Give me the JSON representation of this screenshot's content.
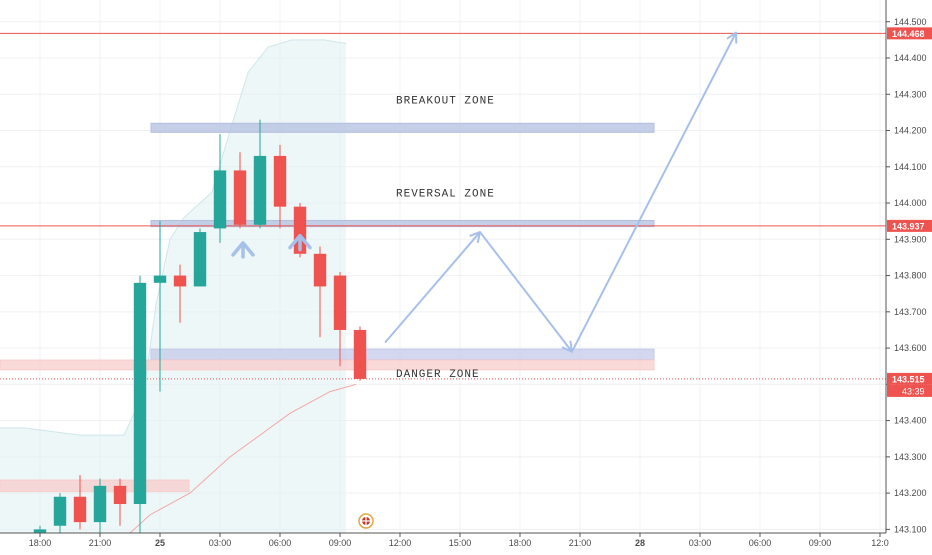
{
  "chart_data": {
    "type": "candlestick",
    "y_axis": {
      "min": 143.09,
      "max": 144.56,
      "ticks": [
        "143.100",
        "143.200",
        "143.300",
        "143.400",
        "143.500",
        "143.600",
        "143.700",
        "143.800",
        "143.900",
        "144.000",
        "144.100",
        "144.200",
        "144.300",
        "144.400",
        "144.500"
      ]
    },
    "x_axis": {
      "ticks": [
        {
          "label": "18:00",
          "x": -4
        },
        {
          "label": "21:00",
          "x": -1
        },
        {
          "label": "25",
          "x": 2
        },
        {
          "label": "03:00",
          "x": 5
        },
        {
          "label": "06:00",
          "x": 8
        },
        {
          "label": "09:00",
          "x": 11
        },
        {
          "label": "12:00",
          "x": 14
        },
        {
          "label": "15:00",
          "x": 17
        },
        {
          "label": "18:00",
          "x": 20
        },
        {
          "label": "21:00",
          "x": 23
        },
        {
          "label": "28",
          "x": 26
        },
        {
          "label": "03:00",
          "x": 29
        },
        {
          "label": "06:00",
          "x": 32
        },
        {
          "label": "09:00",
          "x": 35
        },
        {
          "label": "12:0",
          "x": 38
        }
      ],
      "range": [
        -6,
        38.3
      ]
    },
    "candles": [
      {
        "x": -4,
        "open": 143.08,
        "high": 143.11,
        "low": 143.07,
        "close": 143.1
      },
      {
        "x": -3,
        "open": 143.11,
        "high": 143.2,
        "low": 143.08,
        "close": 143.19
      },
      {
        "x": -2,
        "open": 143.19,
        "high": 143.25,
        "low": 143.1,
        "close": 143.12
      },
      {
        "x": -1,
        "open": 143.12,
        "high": 143.24,
        "low": 143.09,
        "close": 143.22
      },
      {
        "x": 0,
        "open": 143.22,
        "high": 143.24,
        "low": 143.11,
        "close": 143.17
      },
      {
        "x": 1,
        "open": 143.17,
        "high": 143.8,
        "low": 143.09,
        "close": 143.78
      },
      {
        "x": 2,
        "open": 143.78,
        "high": 143.95,
        "low": 143.48,
        "close": 143.8
      },
      {
        "x": 3,
        "open": 143.8,
        "high": 143.83,
        "low": 143.67,
        "close": 143.77
      },
      {
        "x": 4,
        "open": 143.77,
        "high": 143.93,
        "low": 143.77,
        "close": 143.92
      },
      {
        "x": 5,
        "open": 143.93,
        "high": 144.19,
        "low": 143.89,
        "close": 144.09
      },
      {
        "x": 6,
        "open": 144.09,
        "high": 144.14,
        "low": 143.93,
        "close": 143.94
      },
      {
        "x": 7,
        "open": 143.94,
        "high": 144.23,
        "low": 143.93,
        "close": 144.13
      },
      {
        "x": 8,
        "open": 144.13,
        "high": 144.16,
        "low": 143.93,
        "close": 143.99
      },
      {
        "x": 9,
        "open": 143.99,
        "high": 144.0,
        "low": 143.85,
        "close": 143.86
      },
      {
        "x": 10,
        "open": 143.86,
        "high": 143.88,
        "low": 143.63,
        "close": 143.77
      },
      {
        "x": 11,
        "open": 143.8,
        "high": 143.81,
        "low": 143.55,
        "close": 143.65
      },
      {
        "x": 12,
        "open": 143.65,
        "high": 143.66,
        "low": 143.51,
        "close": 143.515
      }
    ],
    "zones": [
      {
        "label": "BREAKOUT ZONE",
        "y0": 144.195,
        "y1": 144.22,
        "x0": 1.55,
        "x1": 26.7,
        "color": "#b3bfe0"
      },
      {
        "label": "REVERSAL ZONE",
        "y0": 143.935,
        "y1": 143.952,
        "x0": 1.55,
        "x1": 26.7,
        "color": "#b3bfe0"
      },
      {
        "label": "DANGER ZONE",
        "y0": 143.568,
        "y1": 143.597,
        "x0": 1.55,
        "x1": 26.7,
        "color": "#c4c9ea"
      },
      {
        "label": "",
        "y0": 143.54,
        "y1": 143.567,
        "x0": -6,
        "x1": 26.7,
        "color": "#f8cccc"
      },
      {
        "label": "",
        "y0": 143.204,
        "y1": 143.236,
        "x0": -6,
        "x1": 3.45,
        "color": "#f8cccc"
      }
    ],
    "zone_labels": [
      {
        "text": "BREAKOUT ZONE",
        "x": 13.8,
        "y": 144.275
      },
      {
        "text": "REVERSAL ZONE",
        "x": 13.8,
        "y": 144.018
      },
      {
        "text": "DANGER ZONE",
        "x": 13.8,
        "y": 143.52
      }
    ],
    "price_lines": [
      {
        "value": 144.468,
        "label": "144.468",
        "style": "solid",
        "color": "#ef5350"
      },
      {
        "value": 143.937,
        "label": "143.937",
        "style": "solid",
        "color": "#ef5350"
      },
      {
        "value": 143.515,
        "label": "143.515",
        "style": "dotted",
        "color": "#ef5350"
      }
    ],
    "countdown": "43:39",
    "projection_path": [
      {
        "x": 13.25,
        "y": 143.615
      },
      {
        "x": 18.0,
        "y": 143.92
      },
      {
        "x": 22.6,
        "y": 143.59
      },
      {
        "x": 30.8,
        "y": 144.47
      }
    ],
    "up_arrows": [
      {
        "x": 6.15,
        "y": 143.89
      },
      {
        "x": 9.0,
        "y": 143.91
      }
    ],
    "colors": {
      "up": "#26a69a",
      "down": "#ef5350",
      "projection": "#a7c0ea",
      "band_fill": "#e3f1f4",
      "ma_line": "#f4a6a6"
    }
  }
}
